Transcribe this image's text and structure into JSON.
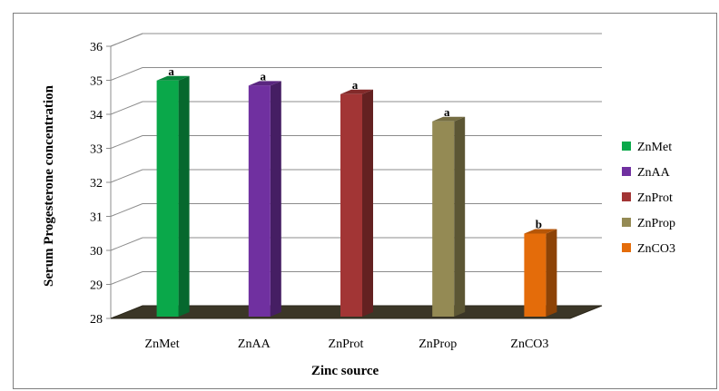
{
  "chart_data": {
    "type": "bar",
    "categories": [
      "ZnMet",
      "ZnAA",
      "ZnProt",
      "ZnProp",
      "ZnCO3"
    ],
    "values": [
      35.1,
      34.95,
      34.7,
      33.9,
      30.6
    ],
    "significance_labels": [
      "a",
      "a",
      "a",
      "a",
      "b"
    ],
    "colors": [
      "#0aa84a",
      "#7030a0",
      "#a23535",
      "#948a54",
      "#e46c0a"
    ],
    "xlabel": "Zinc source",
    "ylabel": "Serum Progesterone concentration",
    "ylim": [
      28,
      36
    ],
    "yticks": [
      28,
      29,
      30,
      31,
      32,
      33,
      34,
      35,
      36
    ],
    "grid": true,
    "legend": {
      "placement": "right",
      "entries": [
        "ZnMet",
        "ZnAA",
        "ZnProt",
        "ZnProp",
        "ZnCO3"
      ]
    },
    "style": "3d-column"
  }
}
